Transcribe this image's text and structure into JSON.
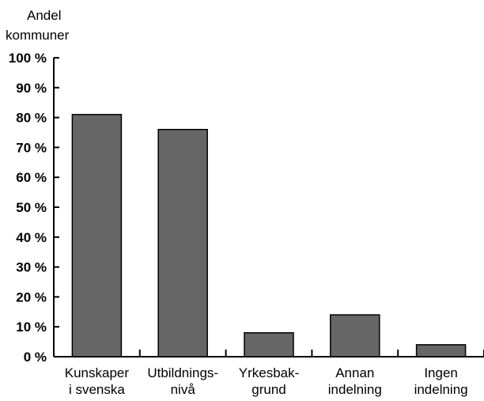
{
  "chart_data": {
    "type": "bar",
    "title": "",
    "ylabel_lines": [
      "Andel",
      "kommuner"
    ],
    "xlabel": "",
    "ylim": [
      0,
      100
    ],
    "y_ticks": [
      0,
      10,
      20,
      30,
      40,
      50,
      60,
      70,
      80,
      90,
      100
    ],
    "y_tick_labels": [
      "0 %",
      "10 %",
      "20 %",
      "30 %",
      "40 %",
      "50 %",
      "60 %",
      "70 %",
      "80 %",
      "90 %",
      "100 %"
    ],
    "categories": [
      [
        "Kunskaper",
        "i svenska"
      ],
      [
        "Utbildnings-",
        "nivå"
      ],
      [
        "Yrkesbak-",
        "grund"
      ],
      [
        "Annan",
        "indelning"
      ],
      [
        "Ingen",
        "indelning"
      ]
    ],
    "values": [
      81,
      76,
      8,
      14,
      4
    ],
    "grid": false,
    "colors": {
      "bar_fill": "#666666",
      "bar_stroke": "#000000",
      "axis": "#000000"
    }
  }
}
